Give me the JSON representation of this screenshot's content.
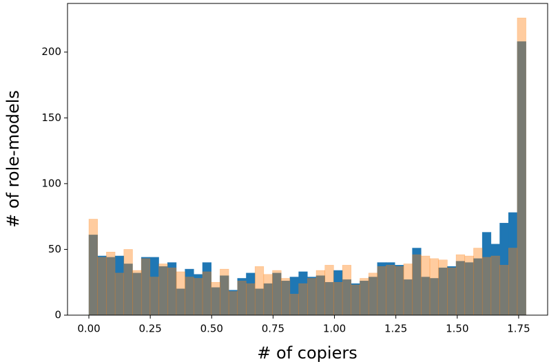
{
  "chart_data": {
    "type": "histogram",
    "xlabel": "# of copiers",
    "ylabel": "# of role-models",
    "bins": [
      0,
      0.0356,
      0.0712,
      0.1068,
      0.1424,
      0.178,
      0.2136,
      0.2492,
      0.2848,
      0.3204,
      0.356,
      0.3916,
      0.4272,
      0.4628,
      0.4984,
      0.534,
      0.5696,
      0.6052,
      0.6408,
      0.6764,
      0.712,
      0.7476,
      0.7832,
      0.8188,
      0.8544,
      0.89,
      0.9256,
      0.9612,
      0.9968,
      1.0324,
      1.068,
      1.1036,
      1.1392,
      1.1748,
      1.2104,
      1.246,
      1.2816,
      1.3172,
      1.3528,
      1.3884,
      1.424,
      1.4596,
      1.4952,
      1.5308,
      1.5664,
      1.602,
      1.6376,
      1.6732,
      1.7088,
      1.7444,
      1.78
    ],
    "series": [
      {
        "color": "#1f77b4",
        "alpha": 1,
        "values": [
          61,
          45,
          44,
          45,
          39,
          32,
          44,
          44,
          37,
          40,
          20,
          35,
          31,
          40,
          21,
          30,
          19,
          28,
          32,
          20,
          24,
          32,
          26,
          29,
          33,
          29,
          30,
          25,
          34,
          27,
          24,
          26,
          29,
          40,
          40,
          38,
          27,
          51,
          29,
          28,
          36,
          37,
          41,
          40,
          43,
          63,
          54,
          70,
          78,
          208
        ]
      },
      {
        "color": "#ff7f0e",
        "alpha": 0.4,
        "values": [
          73,
          44,
          48,
          32,
          50,
          34,
          43,
          29,
          39,
          36,
          33,
          29,
          28,
          33,
          25,
          35,
          18,
          26,
          24,
          37,
          31,
          34,
          28,
          16,
          24,
          28,
          34,
          38,
          25,
          38,
          23,
          28,
          32,
          37,
          38,
          37,
          39,
          46,
          45,
          43,
          42,
          36,
          46,
          45,
          51,
          44,
          45,
          38,
          51,
          226
        ]
      }
    ],
    "xlim": [
      -0.087,
      1.868
    ],
    "ylim": [
      0,
      237
    ],
    "xticks": [
      {
        "value": 0,
        "label": "0.00"
      },
      {
        "value": 0.25,
        "label": "0.25"
      },
      {
        "value": 0.5,
        "label": "0.50"
      },
      {
        "value": 0.75,
        "label": "0.75"
      },
      {
        "value": 1,
        "label": "1.00"
      },
      {
        "value": 1.25,
        "label": "1.25"
      },
      {
        "value": 1.5,
        "label": "1.50"
      },
      {
        "value": 1.75,
        "label": "1.75"
      }
    ],
    "yticks": [
      0,
      50,
      100,
      150,
      200
    ]
  }
}
